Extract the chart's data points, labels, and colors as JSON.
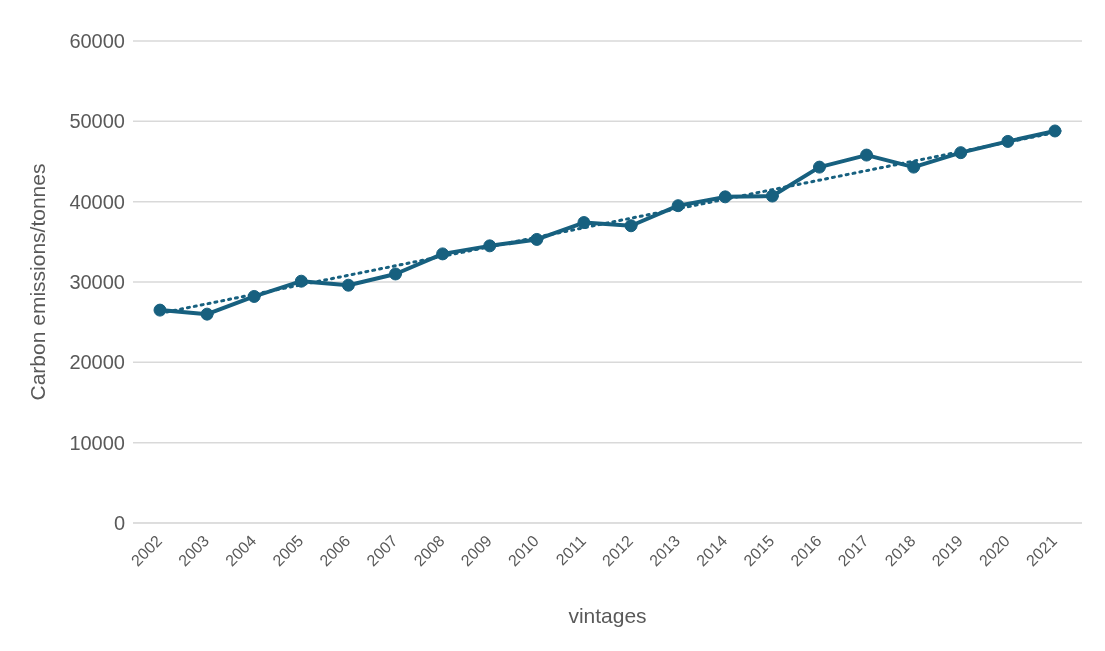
{
  "chart_data": {
    "type": "line",
    "xlabel": "vintages",
    "ylabel": "Carbon emissions/tonnes",
    "categories": [
      "2002",
      "2003",
      "2004",
      "2005",
      "2006",
      "2007",
      "2008",
      "2009",
      "2010",
      "2011",
      "2012",
      "2013",
      "2014",
      "2015",
      "2016",
      "2017",
      "2018",
      "2019",
      "2020",
      "2021"
    ],
    "series": [
      {
        "color": "#17607f",
        "marker": "circle",
        "line_style": "solid",
        "values": [
          26500,
          26000,
          28200,
          30100,
          29600,
          31000,
          33500,
          34500,
          35300,
          37400,
          37000,
          39500,
          40600,
          40700,
          44300,
          45800,
          44300,
          46100,
          47500,
          48800
        ]
      },
      {
        "color": "#17607f",
        "marker": "none",
        "line_style": "dotted",
        "values": [
          26100,
          null,
          null,
          null,
          null,
          null,
          null,
          null,
          null,
          null,
          null,
          null,
          null,
          null,
          null,
          null,
          null,
          null,
          null,
          48600
        ]
      }
    ],
    "ylim": [
      0,
      60000
    ],
    "yticks": [
      0,
      10000,
      20000,
      30000,
      40000,
      50000,
      60000
    ],
    "grid": "y",
    "legend": false
  }
}
